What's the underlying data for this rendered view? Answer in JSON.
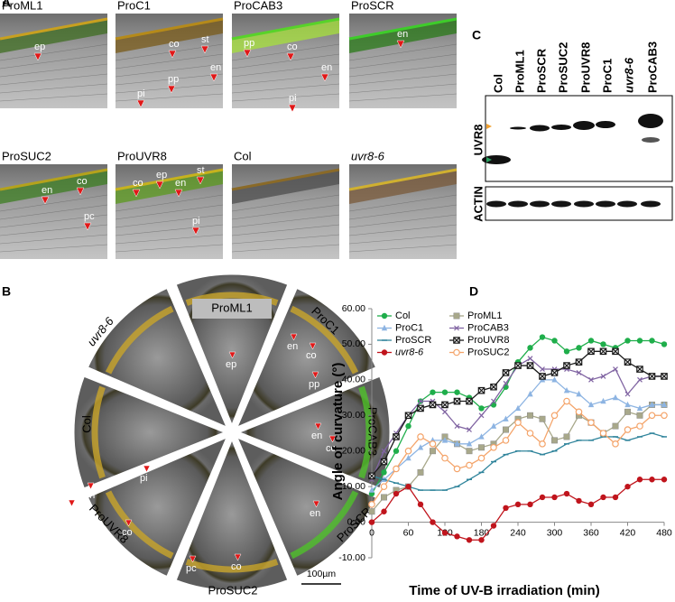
{
  "panels": {
    "a": {
      "label": "A",
      "images": [
        {
          "title": "ProML1",
          "annotations": [
            "ep"
          ]
        },
        {
          "title": "ProC1",
          "annotations": [
            "co",
            "st",
            "en",
            "pp",
            "pi"
          ]
        },
        {
          "title": "ProCAB3",
          "annotations": [
            "pp",
            "co",
            "en",
            "pi"
          ]
        },
        {
          "title": "ProSCR",
          "annotations": [
            "en"
          ]
        },
        {
          "title": "ProSUC2",
          "annotations": [
            "en",
            "co",
            "pc"
          ]
        },
        {
          "title": "ProUVR8",
          "annotations": [
            "co",
            "ep",
            "en",
            "st",
            "pi"
          ]
        },
        {
          "title": "Col",
          "annotations": []
        },
        {
          "title": "uvr8-6",
          "annotations": []
        }
      ],
      "italic_index": [
        7
      ]
    },
    "b": {
      "label": "B",
      "sectors": [
        "ProML1",
        "ProC1",
        "ProCAB3",
        "ProSCR",
        "ProSUC2",
        "ProUVR8",
        "Col",
        "uvr8-6"
      ],
      "italic_index": [
        7
      ],
      "annotations": [
        "ep",
        "en",
        "co",
        "pp",
        "en",
        "co",
        "en",
        "pc",
        "co",
        "pi",
        "en",
        "ep",
        "co"
      ],
      "scale_bar": "100µm"
    },
    "c": {
      "label": "C",
      "lanes": [
        "Col",
        "ProML1",
        "ProSCR",
        "ProSUC2",
        "ProUVR8",
        "ProC1",
        "uvr8-6",
        "ProCAB3"
      ],
      "italic_index": [
        6
      ],
      "rows": [
        "UVR8",
        "ACTIN"
      ]
    },
    "d": {
      "label": "D"
    }
  },
  "chart_data": {
    "type": "line",
    "x_label": "Time of UV-B irradiation (min)",
    "y_label": "Angle of curvature (°)",
    "x": [
      0,
      20,
      40,
      60,
      80,
      100,
      120,
      140,
      160,
      180,
      200,
      220,
      240,
      260,
      280,
      300,
      320,
      340,
      360,
      380,
      400,
      420,
      440,
      460,
      480
    ],
    "xlim": [
      0,
      480
    ],
    "xticks": [
      0,
      60,
      120,
      180,
      240,
      300,
      360,
      420,
      480
    ],
    "ylim": [
      -10,
      60
    ],
    "yticks": [
      {
        "value": -10,
        "label": "-10.00"
      },
      {
        "value": 0,
        "label": "0.00"
      },
      {
        "value": 10,
        "label": "10.00"
      },
      {
        "value": 20,
        "label": "20.00"
      },
      {
        "value": 30,
        "label": "30.00"
      },
      {
        "value": 40,
        "label": "40.00"
      },
      {
        "value": 50,
        "label": "50.00"
      },
      {
        "value": 60,
        "label": "60.00"
      }
    ],
    "legend": "top-left",
    "series": [
      {
        "name": "Col",
        "color": "#1fae4b",
        "marker": "circle",
        "values": [
          8,
          14,
          20,
          27,
          34,
          36.5,
          36.5,
          36.5,
          35,
          32,
          33,
          38,
          45,
          49,
          52,
          51,
          48,
          49,
          51,
          50,
          49,
          51,
          51,
          51,
          50
        ]
      },
      {
        "name": "ProML1",
        "color": "#a8a88a",
        "marker": "square",
        "values": [
          3,
          7,
          9,
          10,
          14,
          20,
          24,
          22,
          20,
          21,
          22,
          26,
          29,
          30,
          29,
          23,
          24,
          30,
          28,
          25,
          27,
          31,
          30,
          33,
          33
        ]
      },
      {
        "name": "ProC1",
        "color": "#8db4e2",
        "marker": "triangle",
        "values": [
          9,
          12,
          15,
          18,
          21,
          23,
          23,
          22,
          22,
          24,
          27,
          29,
          32,
          36,
          40,
          40,
          37,
          36,
          33,
          34,
          35,
          33,
          32,
          33,
          33
        ]
      },
      {
        "name": "ProCAB3",
        "color": "#8064a2",
        "marker": "x",
        "values": [
          12,
          20,
          25,
          30,
          34,
          34,
          31,
          27,
          26,
          30,
          34,
          39,
          44,
          46,
          43,
          43,
          43,
          42,
          40,
          41,
          43,
          36,
          40,
          41,
          41
        ]
      },
      {
        "name": "ProSCR",
        "color": "#31859c",
        "marker": "dash",
        "values": [
          13,
          12,
          11,
          10,
          9,
          9,
          9,
          10,
          12,
          14,
          17,
          19,
          20,
          20,
          19,
          20,
          22,
          23,
          23,
          24,
          24,
          23,
          24,
          25,
          24
        ]
      },
      {
        "name": "ProUVR8",
        "color": "#1a1a1a",
        "marker": "square-x",
        "values": [
          13,
          17,
          24,
          30,
          32,
          33,
          33,
          34,
          34,
          37,
          38,
          42,
          44,
          44,
          41,
          42,
          44,
          45,
          48,
          48,
          48,
          45,
          43,
          41,
          41
        ]
      },
      {
        "name": "uvr8-6",
        "color": "#c0141c",
        "marker": "circle",
        "italic": true,
        "values": [
          0,
          3,
          8,
          10,
          5,
          0,
          -3,
          -4,
          -5,
          -5,
          -1,
          4,
          5,
          5,
          7,
          7,
          8,
          6,
          5,
          7,
          7,
          10,
          12,
          12,
          12
        ]
      },
      {
        "name": "ProSUC2",
        "color": "#f4a46a",
        "marker": "open-circle",
        "values": [
          5,
          10,
          15,
          20,
          24,
          22,
          18,
          15,
          16,
          18,
          21,
          23,
          28,
          25,
          22,
          30,
          34,
          31,
          28,
          25,
          22,
          26,
          27,
          30,
          30
        ]
      }
    ]
  }
}
